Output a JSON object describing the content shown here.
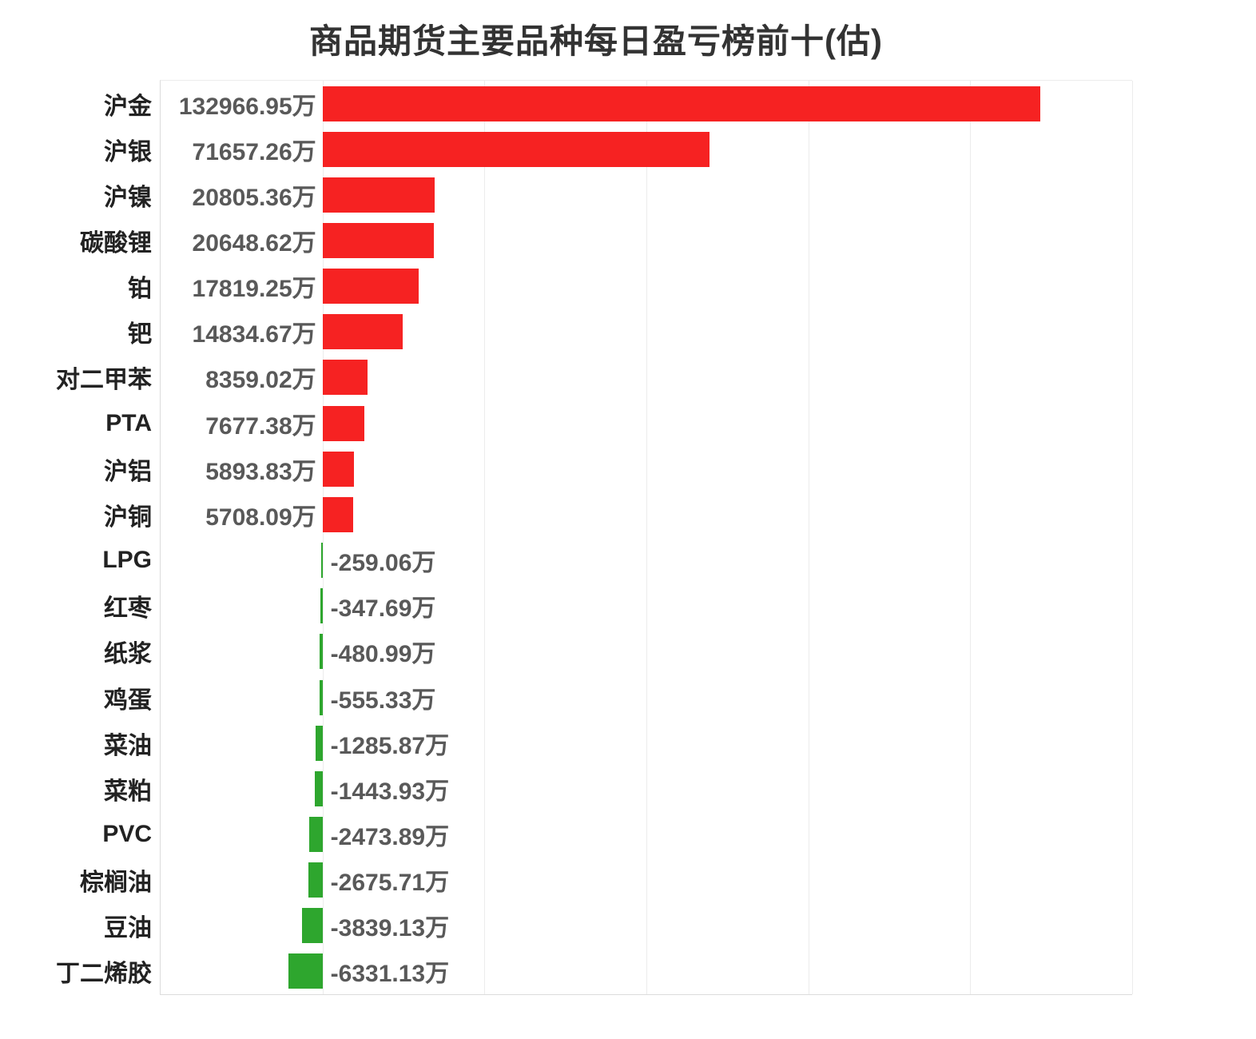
{
  "chart_data": {
    "type": "bar",
    "orientation": "horizontal",
    "title": "商品期货主要品种每日盈亏榜前十(估)",
    "unit": "万",
    "categories": [
      "沪金",
      "沪银",
      "沪镍",
      "碳酸锂",
      "铂",
      "钯",
      "对二甲苯",
      "PTA",
      "沪铝",
      "沪铜",
      "LPG",
      "红枣",
      "纸浆",
      "鸡蛋",
      "菜油",
      "菜粕",
      "PVC",
      "棕榈油",
      "豆油",
      "丁二烯胶"
    ],
    "values": [
      132966.95,
      71657.26,
      20805.36,
      20648.62,
      17819.25,
      14834.67,
      8359.02,
      7677.38,
      5893.83,
      5708.09,
      -259.06,
      -347.69,
      -480.99,
      -555.33,
      -1285.87,
      -1443.93,
      -2473.89,
      -2675.71,
      -3839.13,
      -6331.13
    ],
    "value_labels": [
      "132966.95万",
      "71657.26万",
      "20805.36万",
      "20648.62万",
      "17819.25万",
      "14834.67万",
      "8359.02万",
      "7677.38万",
      "5893.83万",
      "5708.09万",
      "-259.06万",
      "-347.69万",
      "-480.99万",
      "-555.33万",
      "-1285.87万",
      "-1443.93万",
      "-2473.89万",
      "-2675.71万",
      "-3839.13万",
      "-6331.13万"
    ],
    "xlim": [
      -30000,
      150000
    ],
    "grid_interval": 30000,
    "grid": "on",
    "legend": "none",
    "colors": {
      "positive_bar": "#f62222",
      "negative_bar": "#2ea62e",
      "category_text": "#222222",
      "value_text": "#595959",
      "title_text": "#333333",
      "gridline": "#ececec",
      "axis_line": "#dcdcdc"
    }
  }
}
